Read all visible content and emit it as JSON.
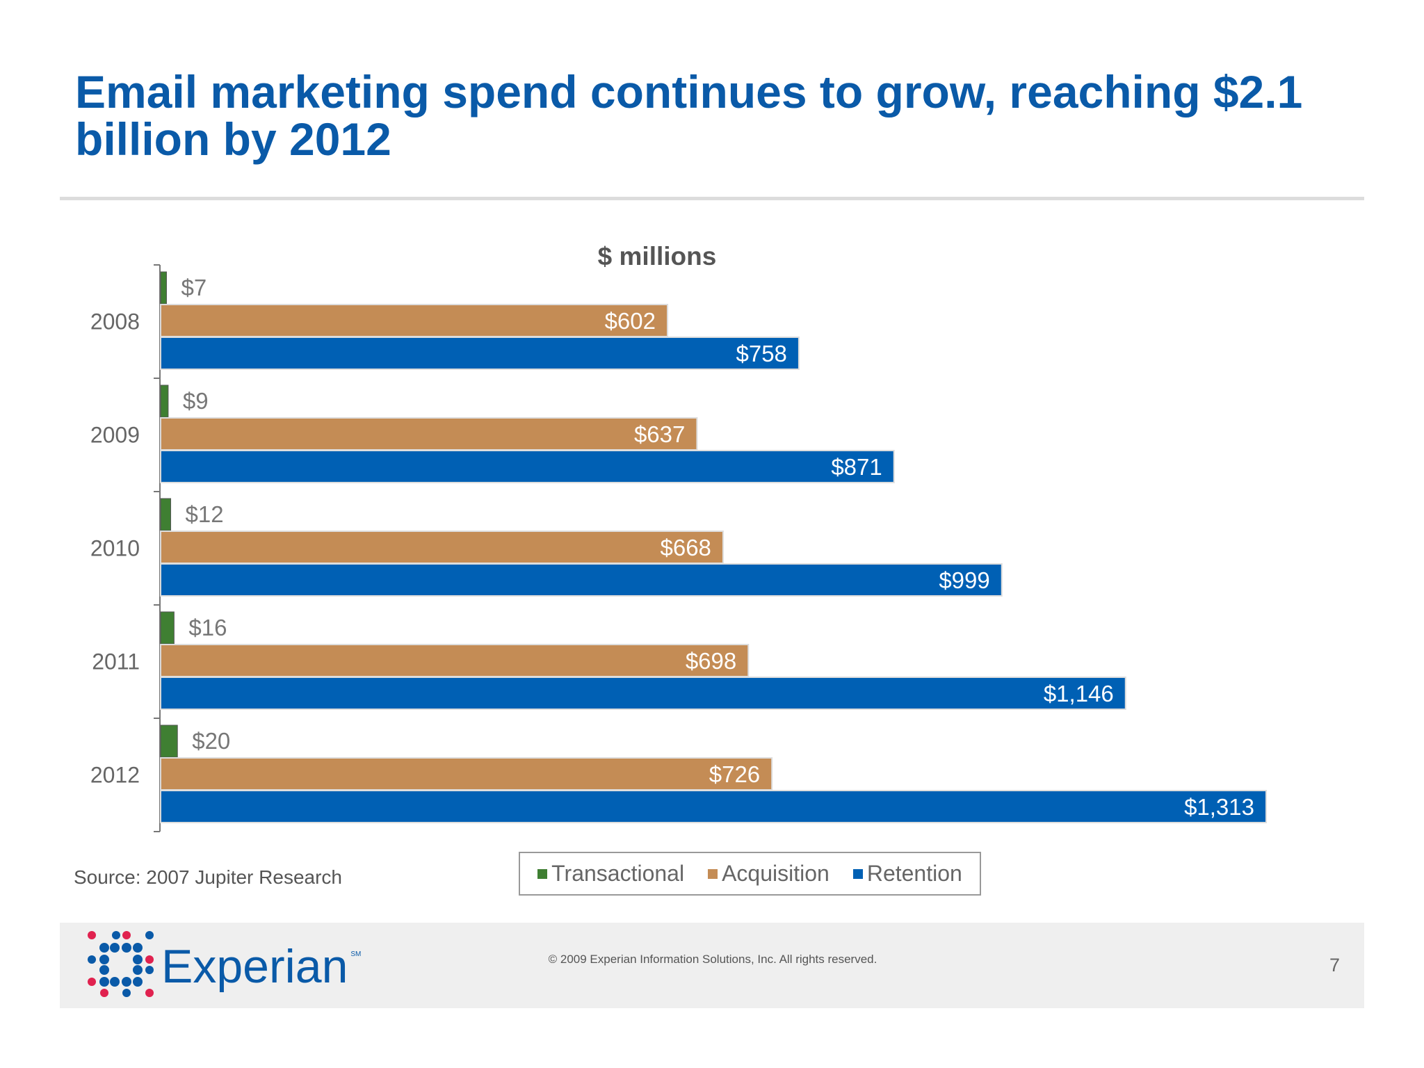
{
  "title": "Email marketing spend continues to grow, reaching $2.1 billion by 2012",
  "source": "Source:  2007 Jupiter Research",
  "footer": {
    "copyright": "© 2009 Experian Information Solutions, Inc.  All rights reserved.",
    "page_number": "7"
  },
  "logo": {
    "text": "Experian",
    "mark": "SM"
  },
  "colors": {
    "title": "#0a5aa8",
    "transactional": "#3f7f32",
    "acquisition": "#c48c55",
    "retention": "#0060b4"
  },
  "chart_data": {
    "type": "bar",
    "orientation": "horizontal",
    "subtitle": "$ millions",
    "categories": [
      "2008",
      "2009",
      "2010",
      "2011",
      "2012"
    ],
    "series": [
      {
        "name": "Transactional",
        "color": "#3f7f32",
        "values": [
          7,
          9,
          12,
          16,
          20
        ],
        "labels": [
          "$7",
          "$9",
          "$12",
          "$16",
          "$20"
        ]
      },
      {
        "name": "Acquisition",
        "color": "#c48c55",
        "values": [
          602,
          637,
          668,
          698,
          726
        ],
        "labels": [
          "$602",
          "$637",
          "$668",
          "$698",
          "$726"
        ]
      },
      {
        "name": "Retention",
        "color": "#0060b4",
        "values": [
          758,
          871,
          999,
          1146,
          1313
        ],
        "labels": [
          "$758",
          "$871",
          "$999",
          "$1,146",
          "$1,313"
        ]
      }
    ],
    "xlim": [
      0,
      1313
    ],
    "grid": false,
    "legend": "bottom"
  }
}
